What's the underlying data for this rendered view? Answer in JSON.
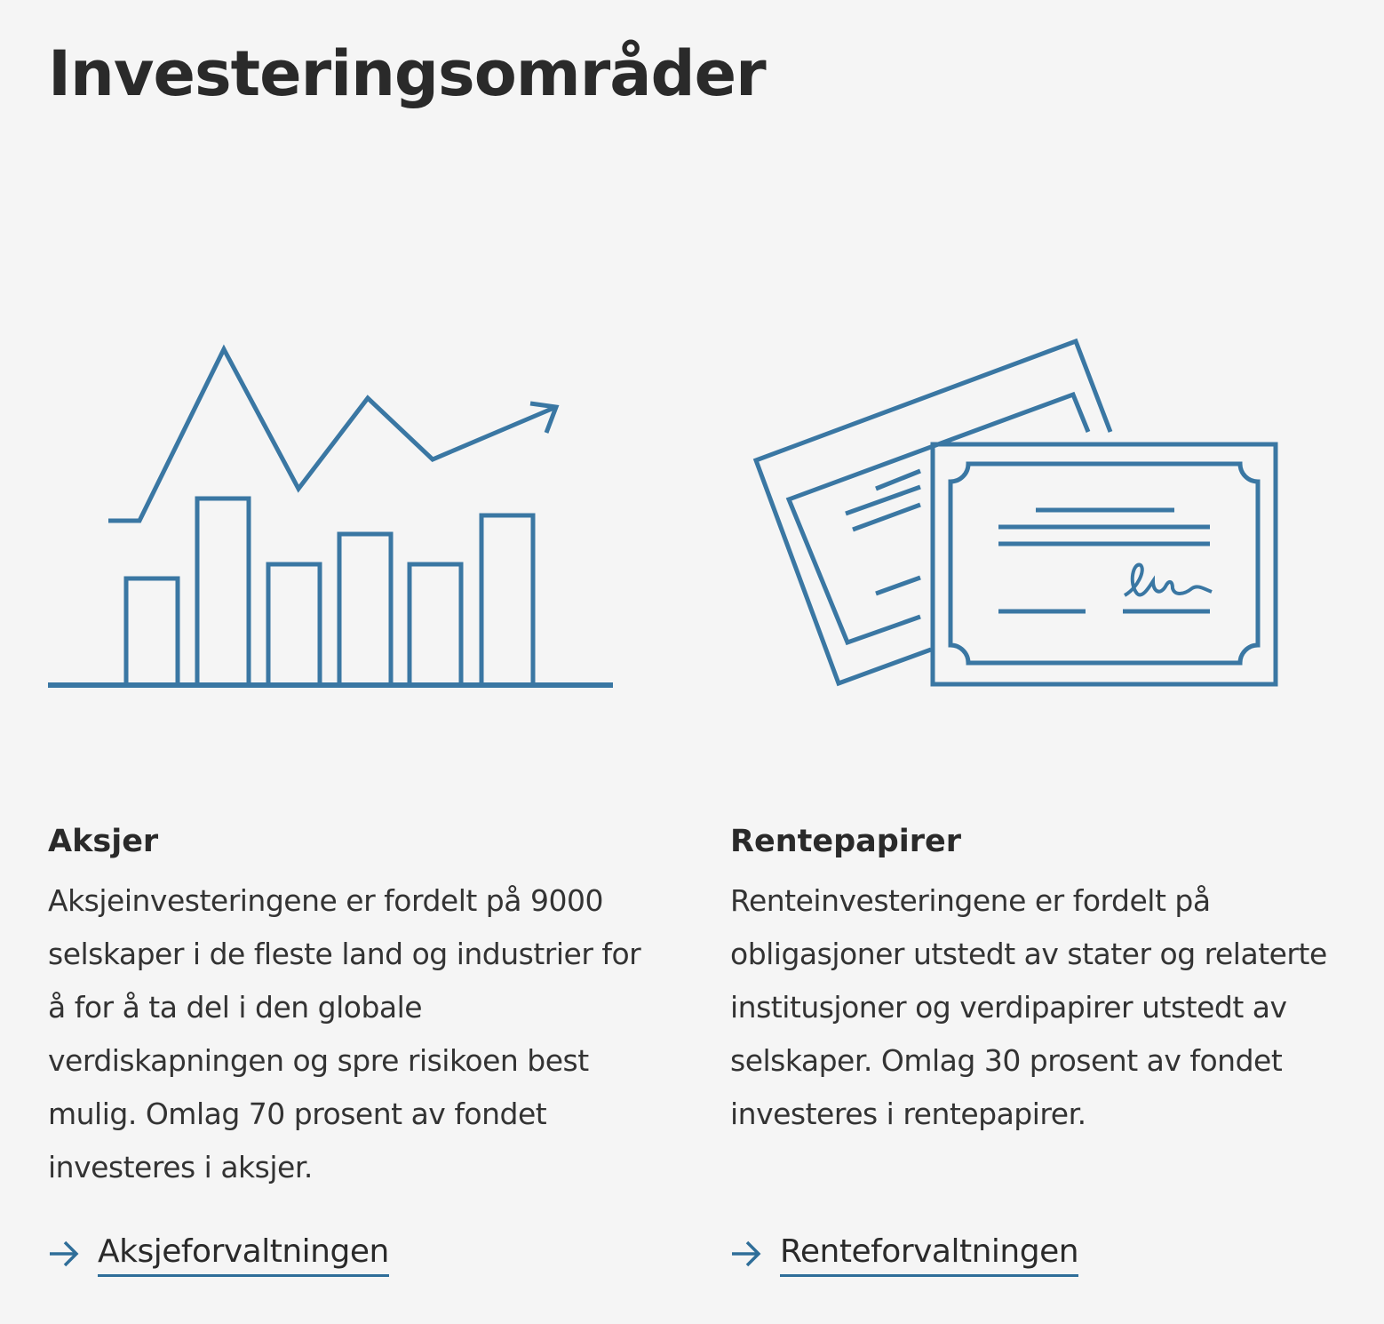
{
  "page": {
    "title": "Investeringsområder"
  },
  "colors": {
    "accent": "#3a77a3",
    "link_underline": "#2f6e99",
    "background": "#f5f5f5",
    "text": "#2a2a2a"
  },
  "cards": [
    {
      "title": "Aksjer",
      "body": "Aksjeinvesteringene er fordelt på 9000 selskaper i de fleste land og industrier for å for å ta del i den globale verdiskapningen og spre risikoen best mulig. Omlag 70 prosent av fondet investeres i aksjer.",
      "link_label": "Aksjeforvaltningen",
      "illustration_icon": "bar-chart-trend-icon"
    },
    {
      "title": "Rentepapirer",
      "body": "Renteinvesteringene er fordelt på obligasjoner utstedt av stater og relaterte institusjoner og verdipapirer utstedt av selskaper. Omlag 30 prosent av fondet investeres i rentepapirer.",
      "link_label": "Renteforvaltningen",
      "illustration_icon": "bond-certificate-icon"
    }
  ]
}
